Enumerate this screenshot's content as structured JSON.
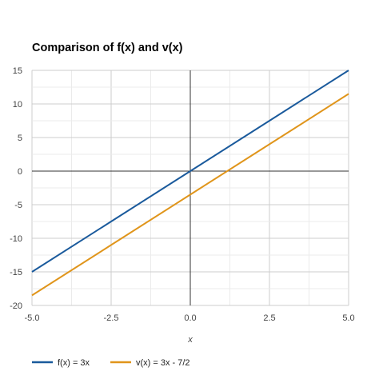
{
  "chart_data": {
    "type": "line",
    "title": "Comparison of f(x) and v(x)",
    "xlabel": "x",
    "ylabel": "",
    "xlim": [
      -5,
      5
    ],
    "ylim": [
      -20,
      15
    ],
    "x_ticks": [
      "-5.0",
      "-2.5",
      "0.0",
      "2.5",
      "5.0"
    ],
    "y_ticks": [
      "15",
      "10",
      "5",
      "0",
      "-5",
      "-10",
      "-15",
      "-20"
    ],
    "grid": true,
    "legend_position": "bottom-left",
    "series": [
      {
        "name": "f(x) = 3x",
        "color": "#1a5a9c",
        "x": [
          -5,
          -2.5,
          0,
          2.5,
          5
        ],
        "y": [
          -15,
          -7.5,
          0,
          7.5,
          15
        ]
      },
      {
        "name": "v(x) = 3x - 7/2",
        "color": "#e0951b",
        "x": [
          -5,
          -2.5,
          0,
          2.5,
          5
        ],
        "y": [
          -18.5,
          -11,
          -3.5,
          4,
          11.5
        ]
      }
    ]
  }
}
